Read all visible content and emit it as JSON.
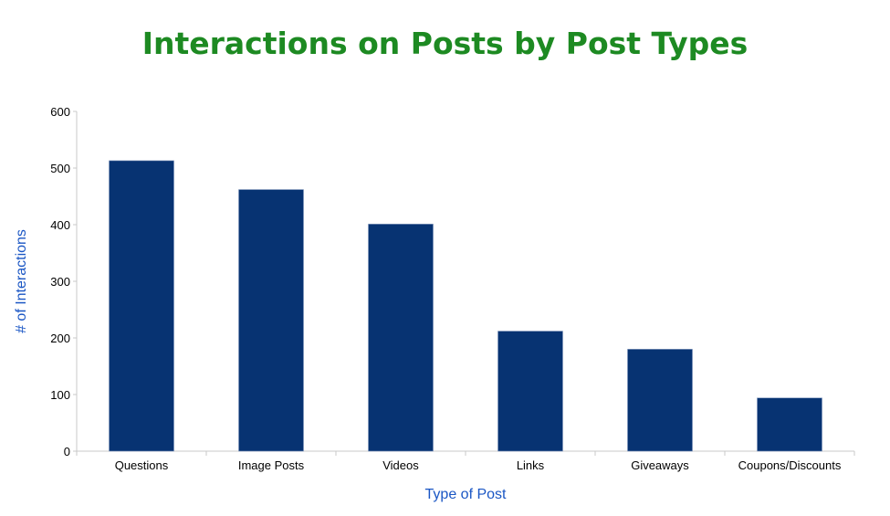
{
  "chart_data": {
    "type": "bar",
    "title": "Interactions on Posts by Post Types",
    "xlabel": "Type of Post",
    "ylabel": "# of Interactions",
    "categories": [
      "Questions",
      "Image Posts",
      "Videos",
      "Links",
      "Giveaways",
      "Coupons/Discounts"
    ],
    "values": [
      513,
      462,
      401,
      212,
      180,
      94
    ],
    "ylim": [
      0,
      600
    ],
    "yticks": [
      "0",
      "100",
      "200",
      "300",
      "400",
      "500",
      "600"
    ],
    "grid": false,
    "legend": "none",
    "colors": {
      "bar": "#073372",
      "title": "#1d8a22",
      "axis_label": "#1a56c4",
      "axis": "#c8c8c8"
    }
  }
}
